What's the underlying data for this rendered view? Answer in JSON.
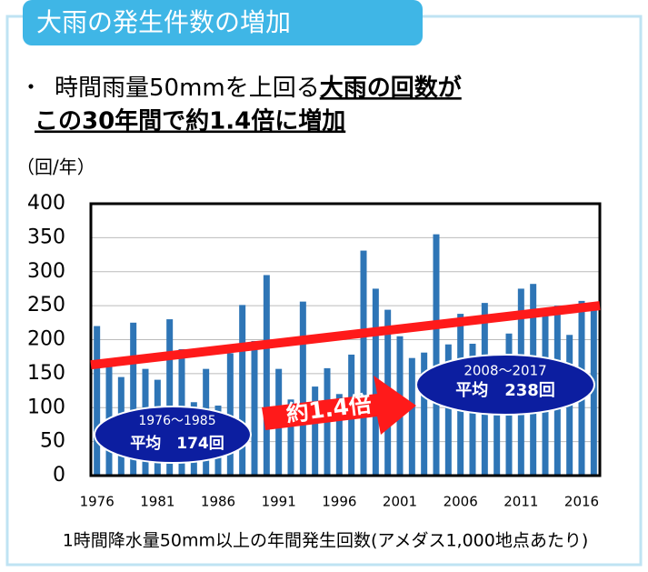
{
  "header": {
    "title": "大雨の発生件数の増加",
    "bullet": "・",
    "lead": "時間雨量50mmを上回る",
    "emphasis1": "大雨の回数が",
    "emphasis2": "この30年間で約1.4倍に増加"
  },
  "chart_data": {
    "type": "bar",
    "y_label": "（回/年）",
    "caption": "1時間降水量50mm以上の年間発生回数(アメダス1,000地点あたり)",
    "categories": [
      "1976",
      null,
      null,
      null,
      null,
      "1981",
      null,
      null,
      null,
      null,
      "1986",
      null,
      null,
      null,
      null,
      "1991",
      null,
      null,
      null,
      null,
      "1996",
      null,
      null,
      null,
      null,
      "2001",
      null,
      null,
      null,
      null,
      "2006",
      null,
      null,
      null,
      null,
      "2011",
      null,
      null,
      null,
      null,
      "2016",
      null
    ],
    "values": [
      220,
      165,
      145,
      225,
      157,
      141,
      230,
      186,
      108,
      157,
      103,
      180,
      251,
      198,
      295,
      157,
      112,
      256,
      131,
      158,
      120,
      178,
      331,
      275,
      244,
      205,
      173,
      181,
      355,
      193,
      238,
      194,
      254,
      165,
      209,
      275,
      282,
      240,
      250,
      207,
      257,
      250
    ],
    "color": "#2e75b6",
    "ylim": [
      0,
      400
    ],
    "yticks": [
      0,
      50,
      100,
      150,
      200,
      250,
      300,
      350,
      400
    ],
    "grid": true,
    "trend": {
      "color": "#ff1a1a",
      "values": [
        163,
        250
      ]
    },
    "annotations": {
      "left_period": "1976～1985",
      "left_avg": "平均　174回",
      "right_period": "2008～2017",
      "right_avg": "平均　238回",
      "ratio": "約1.4倍"
    }
  }
}
